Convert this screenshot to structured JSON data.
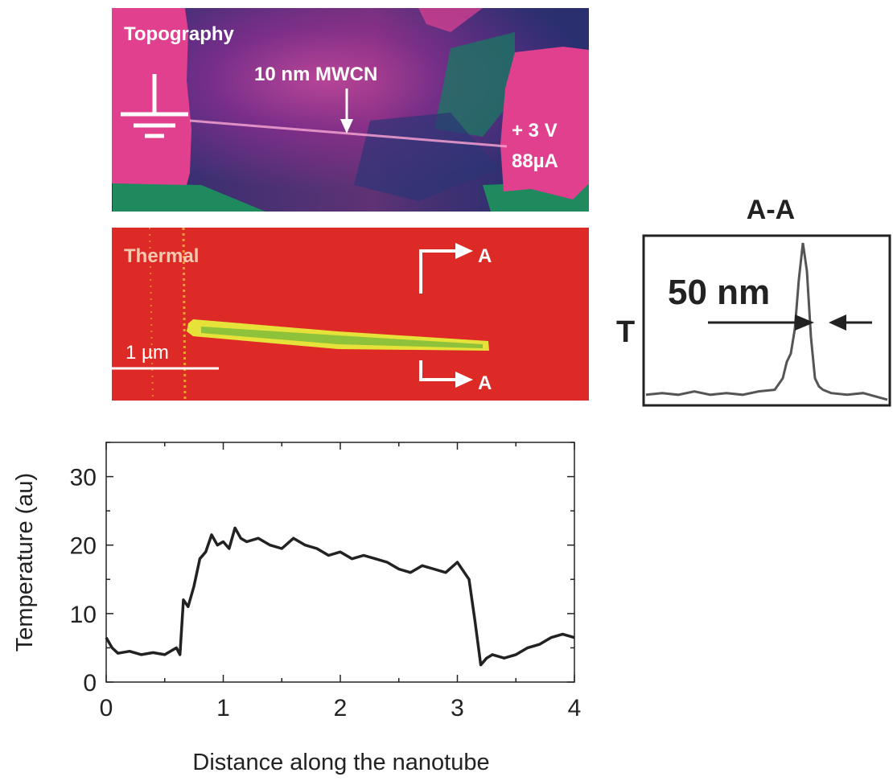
{
  "topography": {
    "label": "Topography",
    "tube_label": "10 nm MWCN",
    "voltage_label": "+ 3 V",
    "current_label": "88µA",
    "icon": "ground-icon"
  },
  "thermal": {
    "label": "Thermal",
    "scale_label": "1 µm",
    "section_marker_top": "A",
    "section_marker_bottom": "A"
  },
  "section": {
    "title": "A-A",
    "ylabel": "T",
    "width_label": "50 nm"
  },
  "colors": {
    "topo_magenta": "#e0408e",
    "topo_purple": "#5a2a8a",
    "topo_navy": "#24306e",
    "topo_green": "#1a8a5a",
    "thermal_red": "#dd2a26",
    "thermal_yellow": "#e6e23a",
    "thermal_green": "#8ec23a",
    "line": "#222222"
  },
  "chart_data": [
    {
      "type": "line",
      "title": "",
      "xlabel": "Distance along the nanotube",
      "ylabel": "Temperature (au)",
      "xlim": [
        0,
        4
      ],
      "ylim": [
        0,
        35
      ],
      "xticks": [
        0,
        1,
        2,
        3,
        4
      ],
      "yticks": [
        0,
        10,
        20,
        30
      ],
      "grid": false,
      "series": [
        {
          "x": [
            0.0,
            0.05,
            0.1,
            0.2,
            0.3,
            0.4,
            0.5,
            0.6,
            0.63,
            0.66,
            0.7,
            0.75,
            0.8,
            0.85,
            0.9,
            0.95,
            1.0,
            1.05,
            1.1,
            1.15,
            1.2,
            1.3,
            1.4,
            1.5,
            1.6,
            1.7,
            1.8,
            1.9,
            2.0,
            2.1,
            2.2,
            2.3,
            2.4,
            2.5,
            2.6,
            2.7,
            2.8,
            2.9,
            3.0,
            3.1,
            3.15,
            3.2,
            3.25,
            3.3,
            3.4,
            3.5,
            3.6,
            3.7,
            3.8,
            3.9,
            4.0
          ],
          "y": [
            6.5,
            5.0,
            4.2,
            4.5,
            4.0,
            4.3,
            4.0,
            5.0,
            4.0,
            12.0,
            11.0,
            14.0,
            18.0,
            19.0,
            21.5,
            20.0,
            20.5,
            19.5,
            22.5,
            21.0,
            20.5,
            21.0,
            20.0,
            19.5,
            21.0,
            20.0,
            19.5,
            18.5,
            19.0,
            18.0,
            18.5,
            18.0,
            17.5,
            16.5,
            16.0,
            17.0,
            16.5,
            16.0,
            17.5,
            15.0,
            9.0,
            2.5,
            3.5,
            4.0,
            3.5,
            4.0,
            5.0,
            5.5,
            6.5,
            7.0,
            6.5
          ]
        }
      ]
    },
    {
      "type": "line",
      "title": "A-A",
      "xlabel": "",
      "ylabel": "T",
      "annotations": [
        "50 nm"
      ],
      "series": [
        {
          "x": [
            0,
            20,
            40,
            60,
            80,
            100,
            120,
            140,
            160,
            170,
            175,
            180,
            185,
            190,
            195,
            200,
            205,
            210,
            215,
            220,
            230,
            250,
            270,
            300
          ],
          "y": [
            0.05,
            0.06,
            0.05,
            0.07,
            0.05,
            0.06,
            0.05,
            0.07,
            0.08,
            0.15,
            0.25,
            0.3,
            0.45,
            0.75,
            0.97,
            0.8,
            0.4,
            0.15,
            0.1,
            0.08,
            0.06,
            0.05,
            0.06,
            0.02
          ]
        }
      ]
    }
  ]
}
